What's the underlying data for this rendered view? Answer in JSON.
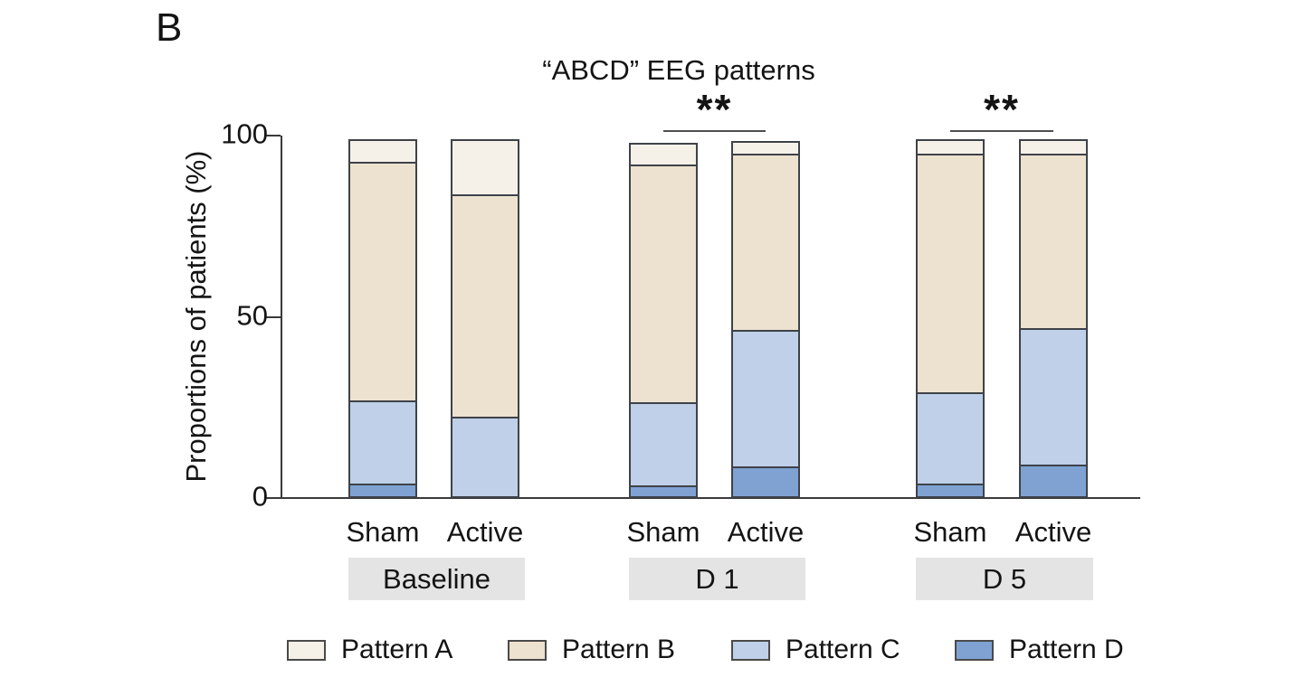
{
  "panel_label": "B",
  "chart_data": {
    "type": "bar",
    "stacked": true,
    "title": "“ABCD” EEG patterns",
    "ylabel": "Proportions of patients (%)",
    "xlabel": "",
    "ylim": [
      0,
      100
    ],
    "yticks": [
      0,
      50,
      100
    ],
    "grid": false,
    "legend_position": "bottom",
    "patterns": [
      {
        "name": "Pattern A",
        "color": "#F5F1E9"
      },
      {
        "name": "Pattern B",
        "color": "#ECE2CF"
      },
      {
        "name": "Pattern C",
        "color": "#BFD0E8"
      },
      {
        "name": "Pattern D",
        "color": "#7FA2D3"
      }
    ],
    "groups": [
      {
        "label": "Baseline",
        "significance": "",
        "bars": [
          {
            "label": "Sham",
            "values": {
              "Pattern A": 6,
              "Pattern B": 67,
              "Pattern C": 23,
              "Pattern D": 3
            }
          },
          {
            "label": "Active",
            "values": {
              "Pattern A": 15,
              "Pattern B": 62,
              "Pattern C": 22,
              "Pattern D": 0
            }
          }
        ]
      },
      {
        "label": "D 1",
        "significance": "**",
        "bars": [
          {
            "label": "Sham",
            "values": {
              "Pattern A": 5.5,
              "Pattern B": 67,
              "Pattern C": 23,
              "Pattern D": 2.5
            }
          },
          {
            "label": "Active",
            "values": {
              "Pattern A": 3,
              "Pattern B": 49.5,
              "Pattern C": 38,
              "Pattern D": 8
            }
          }
        ]
      },
      {
        "label": "D 5",
        "significance": "**",
        "bars": [
          {
            "label": "Sham",
            "values": {
              "Pattern A": 3.5,
              "Pattern B": 67,
              "Pattern C": 25.5,
              "Pattern D": 3
            }
          },
          {
            "label": "Active",
            "values": {
              "Pattern A": 3.5,
              "Pattern B": 49,
              "Pattern C": 38,
              "Pattern D": 8.5
            }
          }
        ]
      }
    ]
  },
  "colors": {
    "axis": "#3A3A3A",
    "bar_border": "#3E4248",
    "sig_line": "#4E4E4E",
    "group_box_bg": "#E4E4E4",
    "text": "#141414"
  }
}
